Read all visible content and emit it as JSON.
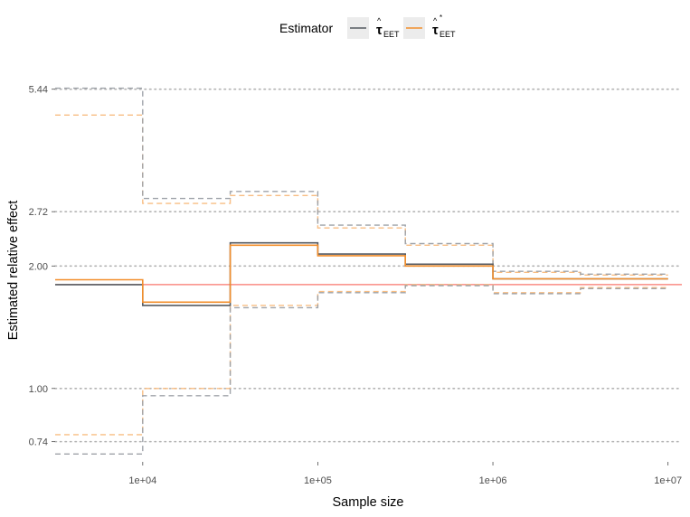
{
  "chart_data": {
    "type": "line",
    "step": true,
    "xlabel": "Sample size",
    "ylabel": "Estimated relative effect",
    "x_scale": "log10",
    "y_scale": "log",
    "xlim": [
      3162,
      12000000
    ],
    "ylim": [
      0.66,
      6.3
    ],
    "x_ticks": [
      10000,
      100000,
      1000000,
      10000000
    ],
    "x_tick_labels": [
      "1e+04",
      "1e+05",
      "1e+06",
      "1e+07"
    ],
    "y_ticks": [
      0.74,
      1.0,
      2.0,
      2.72,
      5.44
    ],
    "y_tick_labels": [
      "0.74",
      "1.00",
      "2.00",
      "2.72",
      "5.44"
    ],
    "grid": "horizontal dotted at y ticks",
    "legend": {
      "position": "top",
      "title": "Estimator",
      "entries": [
        {
          "symbol": "τ",
          "hat": "^",
          "star": "",
          "subscript": "EET",
          "color": "#555a60"
        },
        {
          "symbol": "τ",
          "hat": "^",
          "star": "*",
          "subscript": "EET",
          "color": "#f28e2b"
        }
      ]
    },
    "reference_line": {
      "y": 1.8,
      "color": "#f8766d"
    },
    "x": [
      3162,
      10000,
      31623,
      100000,
      316228,
      1000000,
      3162278,
      10000000
    ],
    "series": [
      {
        "color": "#555a60",
        "estimate": [
          1.8,
          1.6,
          2.28,
          2.14,
          2.02,
          1.86,
          1.86
        ],
        "upper": [
          5.47,
          2.93,
          3.05,
          2.52,
          2.27,
          1.94,
          1.91
        ],
        "lower": [
          0.69,
          0.96,
          1.58,
          1.72,
          1.79,
          1.71,
          1.76
        ]
      },
      {
        "color": "#f28e2b",
        "estimate": [
          1.85,
          1.63,
          2.25,
          2.12,
          2.0,
          1.86,
          1.86
        ],
        "upper": [
          4.7,
          2.85,
          2.98,
          2.48,
          2.25,
          1.93,
          1.9
        ],
        "lower": [
          0.77,
          1.0,
          1.6,
          1.73,
          1.8,
          1.72,
          1.77
        ]
      }
    ]
  }
}
